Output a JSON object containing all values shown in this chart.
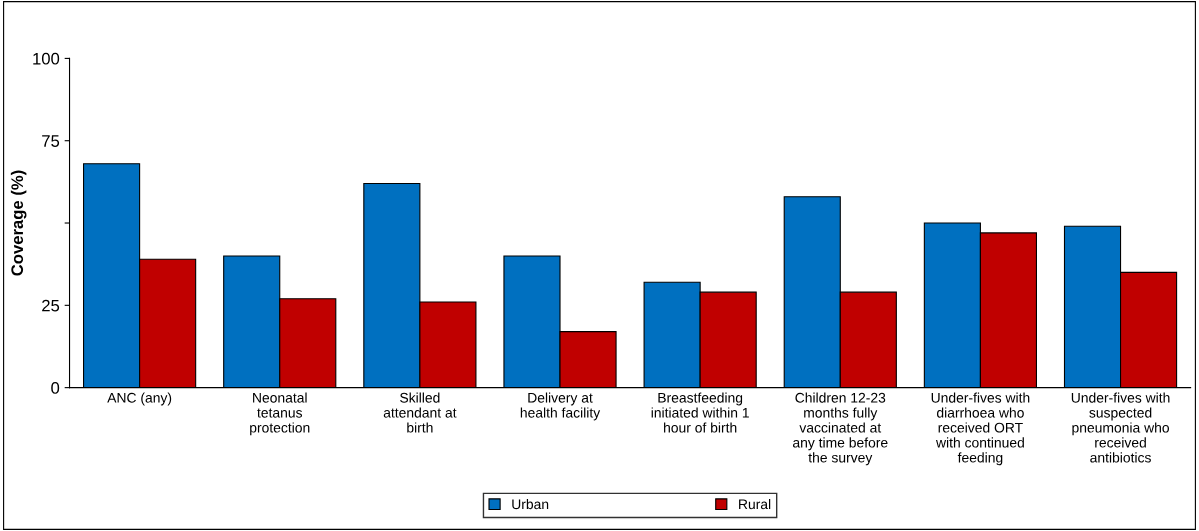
{
  "chart_data": {
    "type": "bar",
    "ylabel": "Coverage (%)",
    "categories": [
      "ANC (any)",
      "Neonatal\ntetanus\nprotection",
      "Skilled\nattendant at\nbirth",
      "Delivery at\nhealth facility",
      "Breastfeeding\ninitiated within 1\nhour of birth",
      "Children 12-23\nmonths fully\nvaccinated at\nany time before\nthe survey",
      "Under-fives with\ndiarrhoea who\nreceived ORT\nwith continued\nfeeding",
      "Under-fives with\nsuspected\npneumonia who\nreceived\nantibiotics"
    ],
    "series": [
      {
        "name": "Urban",
        "color": "#0070c0",
        "values": [
          68,
          40,
          62,
          40,
          32,
          58,
          50,
          49
        ]
      },
      {
        "name": "Rural",
        "color": "#c00000",
        "values": [
          39,
          27,
          26,
          17,
          29,
          29,
          47,
          35
        ]
      }
    ],
    "ylim": [
      0,
      100
    ],
    "yticks": [
      0,
      25,
      {
        "value": 50,
        "label": null
      },
      75,
      100
    ],
    "grid": false,
    "legend": "bottom"
  }
}
